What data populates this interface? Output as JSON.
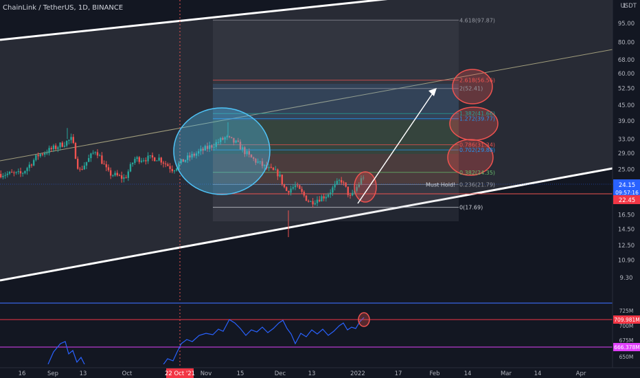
{
  "header": {
    "symbol_text": "ChainLink / TetherUS, 1D, BINANCE",
    "currency": "USDT",
    "currency_prefix": "1"
  },
  "chart_data": [
    {
      "type": "candlestick",
      "title": "ChainLink / TetherUS, 1D, BINANCE",
      "y_scale": "log",
      "y_ticks": [
        95.0,
        80.0,
        68.0,
        60.0,
        52.5,
        45.0,
        39.0,
        33.0,
        29.0,
        25.0,
        22.0,
        19.0,
        16.5,
        14.5,
        12.5,
        10.9,
        9.3
      ],
      "x_ticks": [
        "16",
        "Sep",
        "13",
        "Oct",
        "22 Oct '21",
        "Nov",
        "15",
        "Dec",
        "13",
        "2022",
        "17",
        "Feb",
        "14",
        "Mar",
        "14",
        "Apr"
      ],
      "highlighted_x_label": "22 Oct '21",
      "price_path": [
        [
          "2021-08-16",
          24.0
        ],
        [
          "2021-08-23",
          28.5
        ],
        [
          "2021-08-30",
          30.5
        ],
        [
          "2021-09-06",
          33.0
        ],
        [
          "2021-09-09",
          24.5
        ],
        [
          "2021-09-16",
          30.0
        ],
        [
          "2021-09-21",
          24.2
        ],
        [
          "2021-09-28",
          23.0
        ],
        [
          "2021-10-02",
          27.5
        ],
        [
          "2021-10-12",
          27.8
        ],
        [
          "2021-10-18",
          25.0
        ],
        [
          "2021-10-22",
          27.0
        ],
        [
          "2021-10-28",
          29.0
        ],
        [
          "2021-11-03",
          31.0
        ],
        [
          "2021-11-09",
          33.5
        ],
        [
          "2021-11-14",
          31.5
        ],
        [
          "2021-11-19",
          28.0
        ],
        [
          "2021-11-26",
          25.3
        ],
        [
          "2021-12-01",
          24.0
        ],
        [
          "2021-12-04",
          20.5
        ],
        [
          "2021-12-08",
          21.5
        ],
        [
          "2021-12-14",
          18.5
        ],
        [
          "2021-12-21",
          19.8
        ],
        [
          "2021-12-27",
          22.8
        ],
        [
          "2021-12-31",
          19.2
        ],
        [
          "2022-01-04",
          22.5
        ],
        [
          "2022-01-06",
          24.15
        ]
      ],
      "last_price": "24.15",
      "countdown": "09:57:16",
      "marked_price": "22.45",
      "fibonacci": [
        {
          "ratio": "4.618",
          "label": "4.618(97.87)",
          "price": 97.87
        },
        {
          "ratio": "2.618",
          "label": "2.618(56.56)",
          "price": 56.56
        },
        {
          "ratio": "2",
          "label": "2(52.41)",
          "price": 52.41
        },
        {
          "ratio": "1.382",
          "label": "1.382(41.66)",
          "price": 41.66
        },
        {
          "ratio": "1.272",
          "label": "1.272(39.77)",
          "price": 39.77
        },
        {
          "ratio": "0.786",
          "label": "0.786(31.34)",
          "price": 31.34
        },
        {
          "ratio": "0.702",
          "label": "0.702(29.88)",
          "price": 29.88
        },
        {
          "ratio": "0.382",
          "label": "0.382(24.35)",
          "price": 24.35
        },
        {
          "ratio": "0.236",
          "label": "0.236(21.79)",
          "price": 21.79
        },
        {
          "ratio": "0",
          "label": "0(17.69)",
          "price": 17.69
        }
      ],
      "annotation": "Must Hold!",
      "colors": {
        "up": "#26a69a",
        "down": "#ef5350",
        "channel": "#ffffff",
        "fib_box": "#787b86",
        "highlight": "#4fc3f7"
      }
    },
    {
      "type": "line",
      "name": "OBV",
      "y_ticks": [
        "725M",
        "700M",
        "675M",
        "650M"
      ],
      "badges": [
        "709.981M",
        "666.378M"
      ],
      "level_top": 709.981,
      "level_bottom": 666.378,
      "line_color": "#2962ff",
      "level_color": "#f23645"
    }
  ]
}
